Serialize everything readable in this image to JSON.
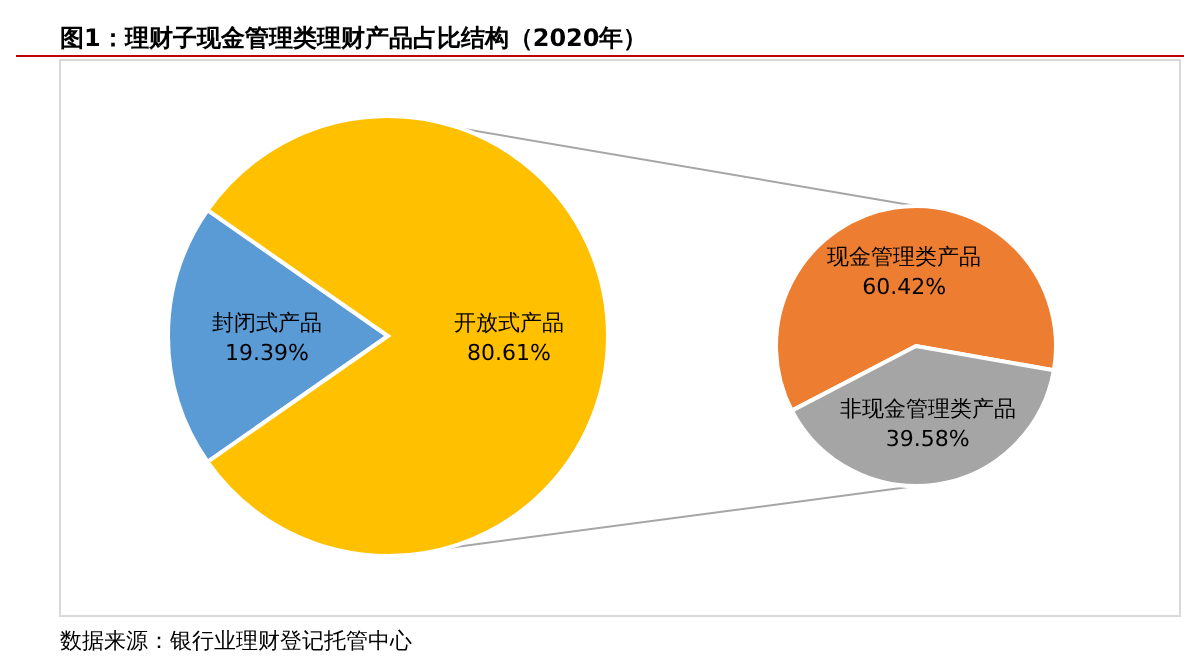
{
  "chart_data": [
    {
      "type": "pie",
      "title": "图1：理财子现金管理类理财产品占比结构（2020年）",
      "categories": [
        "封闭式产品",
        "开放式产品"
      ],
      "values": [
        19.39,
        80.61
      ],
      "colors": [
        "#5b9bd5",
        "#ffc000"
      ],
      "value_labels": [
        "19.39%",
        "80.61%"
      ],
      "annotations": [
        "数据来源：银行业理财登记托管中心"
      ]
    },
    {
      "type": "pie",
      "categories": [
        "现金管理类产品",
        "非现金管理类产品"
      ],
      "values": [
        60.42,
        39.58
      ],
      "colors": [
        "#ed7d31",
        "#a5a5a5"
      ],
      "value_labels": [
        "60.42%",
        "39.58%"
      ]
    }
  ]
}
